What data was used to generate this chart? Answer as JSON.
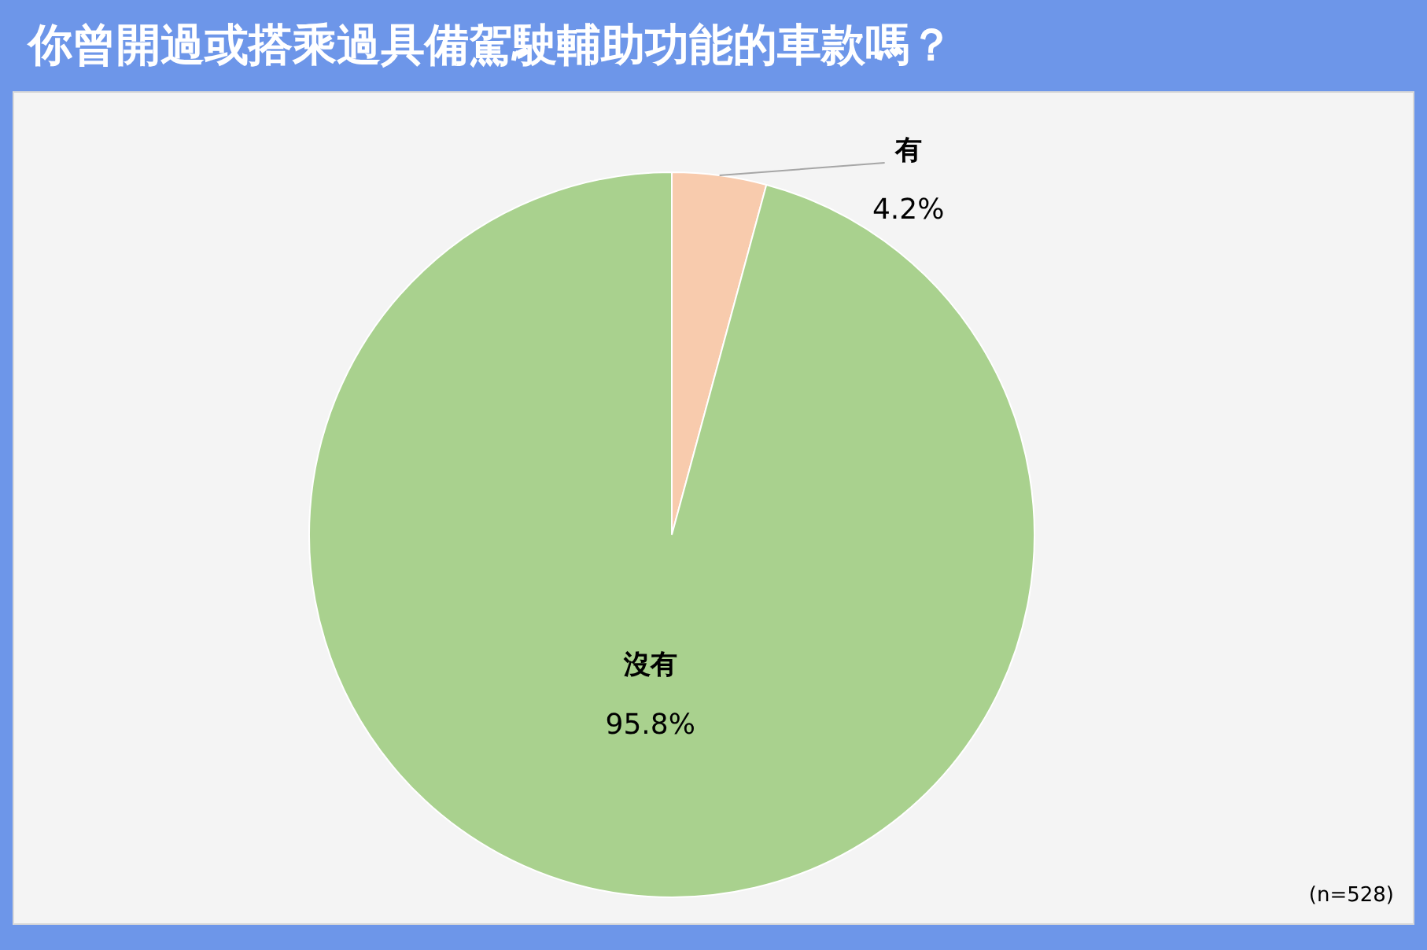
{
  "chart_data": {
    "type": "pie",
    "title": "你曾開過或搭乘過具備駕駛輔助功能的車款嗎？",
    "categories": [
      "有",
      "沒有"
    ],
    "values": [
      4.2,
      95.8
    ],
    "colors": [
      "#f8cbad",
      "#a9d18e"
    ],
    "value_labels": [
      "4.2%",
      "95.8%"
    ],
    "legend": false,
    "annotations": [
      "(n=528)"
    ]
  }
}
